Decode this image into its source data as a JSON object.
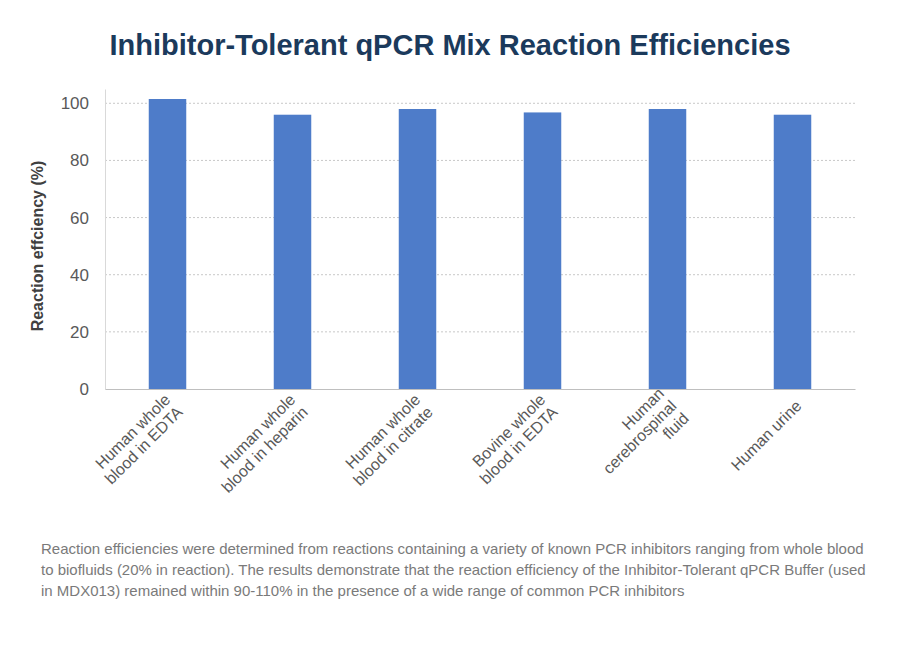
{
  "chart_data": {
    "type": "bar",
    "title": "Inhibitor-Tolerant qPCR Mix Reaction Efficiencies",
    "y_label": "Reaction effciency (%)",
    "annotations": [
      "Reaction efficiencies were determined from reactions containing a variety of known PCR inhibitors ranging from whole blood to biofluids (20% in reaction). The results demonstrate that the reaction efficiency of the Inhibitor-Tolerant qPCR Buffer (used in MDX013) remained within 90-110% in the presence of a wide range of common PCR inhibitors"
    ],
    "categories": [
      "Human whole blood in EDTA",
      "Human whole blood in heparin",
      "Human whole blood in citrate",
      "Bovine whole blood in EDTA",
      "Human cerebrospinal fluid",
      "Human urine"
    ],
    "values": [
      101.5,
      96,
      98,
      96.8,
      98,
      96
    ],
    "color": "#4e7cc9",
    "ylim": [
      0,
      105
    ],
    "yticks": [
      0,
      20,
      40,
      60,
      80,
      100
    ],
    "grid": true
  }
}
